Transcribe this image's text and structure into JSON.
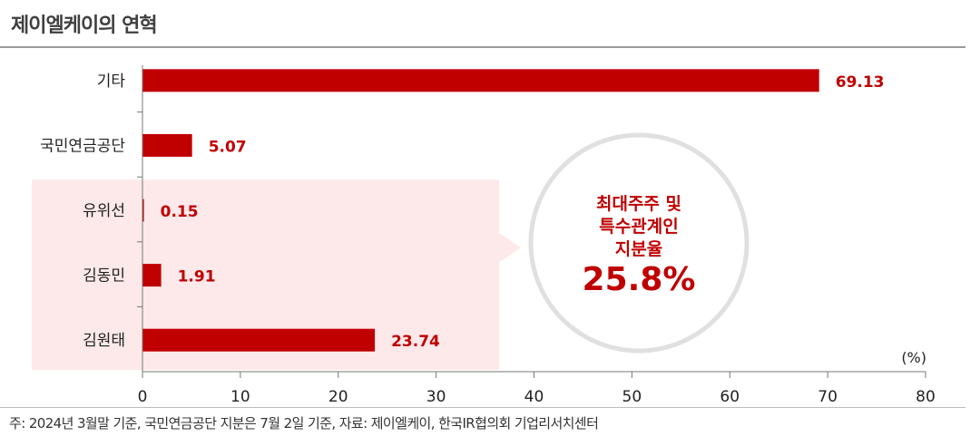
{
  "title": "제이엘케이의 연혁",
  "footnote": "주: 2024년 3월말 기준, 국민연금공단 지분은 7월 2일 기준, 자료: 제이엘케이, 한국IR협의회 기업리서치센터",
  "colors": {
    "bar": "#c00000",
    "highlight_box": "#fde9ea",
    "circle_text": "#c00000"
  },
  "callout": {
    "line1": "최대주주 및",
    "line2": "특수관계인",
    "line3": "지분율",
    "value": "25.8%"
  },
  "chart_data": {
    "type": "bar",
    "orientation": "horizontal",
    "categories": [
      "기타",
      "국민연금공단",
      "유위선",
      "김동민",
      "김원태"
    ],
    "values": [
      69.13,
      5.07,
      0.15,
      1.91,
      23.74
    ],
    "value_labels": [
      "69.13",
      "5.07",
      "0.15",
      "1.91",
      "23.74"
    ],
    "xlim": [
      0,
      80
    ],
    "xticks": [
      "0",
      "10",
      "20",
      "30",
      "40",
      "50",
      "60",
      "70",
      "80"
    ],
    "unit_label": "(%)",
    "highlighted_categories": [
      "유위선",
      "김동민",
      "김원태"
    ],
    "grid": false
  }
}
